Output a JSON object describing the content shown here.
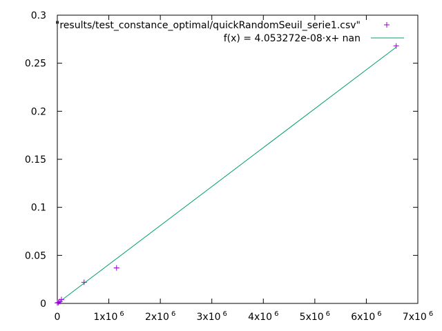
{
  "chart_data": {
    "type": "scatter",
    "title": "",
    "xlabel": "",
    "ylabel": "",
    "xlim": [
      0,
      7000000
    ],
    "ylim": [
      0,
      0.3
    ],
    "grid": false,
    "legend_position": "top-right",
    "x_ticks": [
      {
        "value": 0,
        "label": "0",
        "sup": ""
      },
      {
        "value": 1000000,
        "label": "1x10",
        "sup": "6"
      },
      {
        "value": 2000000,
        "label": "2x10",
        "sup": "6"
      },
      {
        "value": 3000000,
        "label": "3x10",
        "sup": "6"
      },
      {
        "value": 4000000,
        "label": "4x10",
        "sup": "6"
      },
      {
        "value": 5000000,
        "label": "5x10",
        "sup": "6"
      },
      {
        "value": 6000000,
        "label": "6x10",
        "sup": "6"
      },
      {
        "value": 7000000,
        "label": "7x10",
        "sup": "6"
      }
    ],
    "y_ticks": [
      {
        "value": 0,
        "label": "0"
      },
      {
        "value": 0.05,
        "label": "0.05"
      },
      {
        "value": 0.1,
        "label": "0.1"
      },
      {
        "value": 0.15,
        "label": "0.15"
      },
      {
        "value": 0.2,
        "label": "0.2"
      },
      {
        "value": 0.25,
        "label": "0.25"
      },
      {
        "value": 0.3,
        "label": "0.3"
      }
    ],
    "series": [
      {
        "name": "\"results/test_constance_optimal/quickRandomSeuil_serie1.csv\"",
        "kind": "points",
        "marker": "plus",
        "color": "#9400d3",
        "x": [
          0,
          20000,
          50000,
          80000,
          520000,
          1150000,
          6580000
        ],
        "y": [
          0.0005,
          0.001,
          0.002,
          0.004,
          0.022,
          0.037,
          0.268
        ]
      },
      {
        "name": "f(x) = 4.053272e-08·x+ nan",
        "kind": "line",
        "color": "#009e73",
        "slope": 4.053272e-08,
        "x_range": [
          0,
          6580000
        ]
      }
    ]
  }
}
